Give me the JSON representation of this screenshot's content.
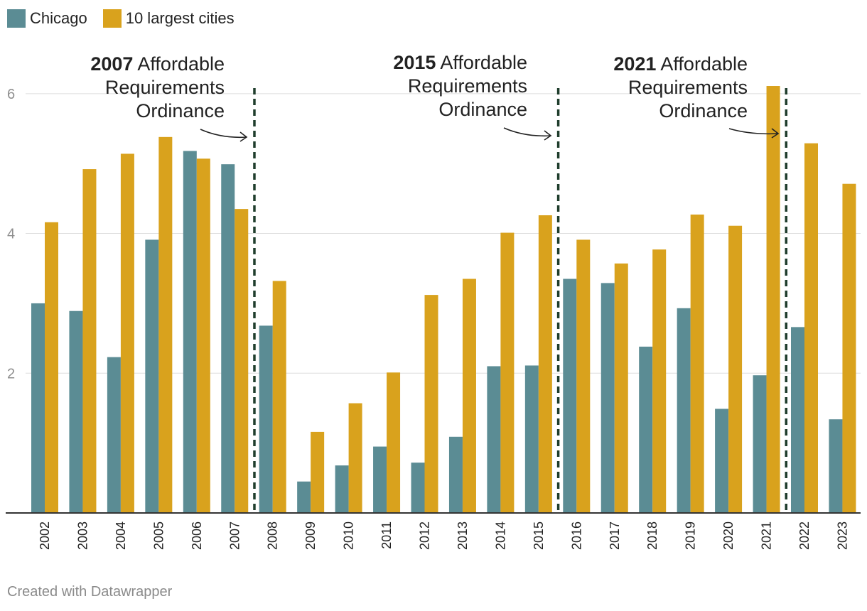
{
  "legend": {
    "items": [
      {
        "label": "Chicago",
        "color": "#5b8c94"
      },
      {
        "label": "10 largest cities",
        "color": "#d9a21d"
      }
    ]
  },
  "annotations": [
    {
      "year_bold": "2007",
      "line1_rest": " Affordable",
      "line2": "Requirements",
      "line3": "Ordinance"
    },
    {
      "year_bold": "2015",
      "line1_rest": " Affordable",
      "line2": "Requirements",
      "line3": "Ordinance"
    },
    {
      "year_bold": "2021",
      "line1_rest": " Affordable",
      "line2": "Requirements",
      "line3": "Ordinance"
    }
  ],
  "credit": "Created with Datawrapper",
  "chart_data": {
    "type": "bar",
    "categories": [
      "2002",
      "2003",
      "2004",
      "2005",
      "2006",
      "2007",
      "2008",
      "2009",
      "2010",
      "2011",
      "2012",
      "2013",
      "2014",
      "2015",
      "2016",
      "2017",
      "2018",
      "2019",
      "2020",
      "2021",
      "2022",
      "2023"
    ],
    "series": [
      {
        "name": "Chicago",
        "color": "#5b8c94",
        "values": [
          3.0,
          2.89,
          2.23,
          3.91,
          5.18,
          4.99,
          2.68,
          0.45,
          0.68,
          0.95,
          0.72,
          1.09,
          2.1,
          2.11,
          3.35,
          3.29,
          2.38,
          2.93,
          1.49,
          1.97,
          2.66,
          1.34
        ]
      },
      {
        "name": "10 largest cities",
        "color": "#d9a21d",
        "values": [
          4.16,
          4.92,
          5.14,
          5.38,
          5.07,
          4.35,
          3.32,
          1.16,
          1.57,
          2.01,
          3.12,
          3.35,
          4.01,
          4.26,
          3.91,
          3.57,
          3.77,
          4.27,
          4.11,
          6.11,
          5.29,
          4.71
        ]
      }
    ],
    "yticks": [
      2,
      4,
      6
    ],
    "ylim": [
      0,
      6.1
    ],
    "markers_after": [
      "2007",
      "2015",
      "2021"
    ],
    "title": "",
    "xlabel": "",
    "ylabel": ""
  }
}
